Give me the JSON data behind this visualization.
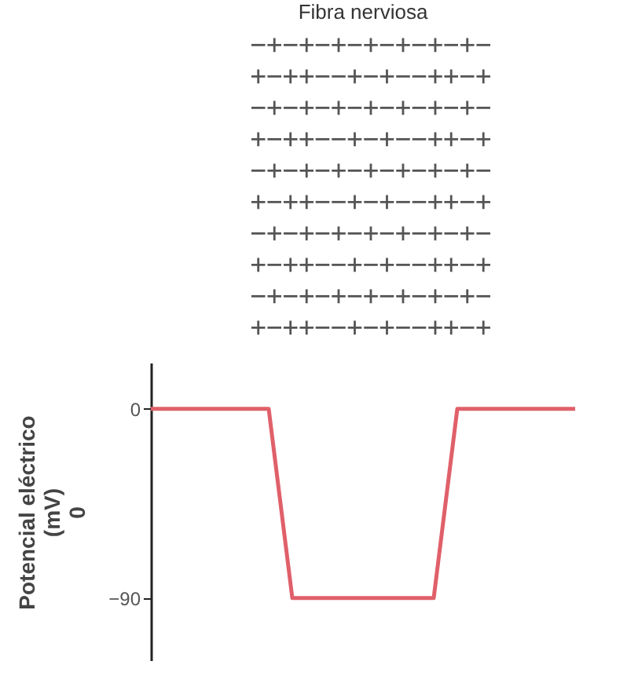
{
  "chart_data": {
    "type": "line",
    "title": "Fibra nerviosa",
    "ylabel": "Potencial eléctrico\n(mV)\n0",
    "annotations": [
      "−+−+−+−+−+−+−+−",
      "+−++−−+−+−−++−+",
      "−+−+−+−+−+−+−+−",
      "+−++−−+−+−−++−+",
      "−+−+−+−+−+−+−+−",
      "+−++−−+−+−−++−+",
      "−+−+−+−+−+−+−+−",
      "+−++−−+−+−−++−+",
      "−+−+−+−+−+−+−+−",
      "+−++−−+−+−−++−+"
    ],
    "categories": [
      null,
      null,
      null,
      null,
      null,
      null,
      null,
      null,
      null,
      null,
      null,
      null,
      null,
      null,
      null,
      null,
      null,
      null,
      null
    ],
    "series": [
      {
        "color": "#e0606a",
        "values": [
          0,
          0,
          0,
          0,
          0,
          0,
          -90,
          -90,
          -90,
          -90,
          -90,
          -90,
          -90,
          0,
          0,
          0,
          0,
          0,
          0
        ]
      }
    ],
    "ylim": [
      -120,
      22
    ],
    "yticks": [
      0,
      -90
    ],
    "grid": false,
    "marker": "none",
    "line_style": "solid",
    "tick_labels": "y",
    "legend": false
  }
}
